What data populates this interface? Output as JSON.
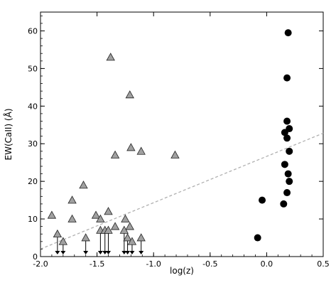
{
  "chart_data": {
    "type": "scatter",
    "title": "",
    "xlabel": "log(z)",
    "ylabel": "EW(CaII) (Å)",
    "xlim": [
      -2.0,
      0.5
    ],
    "ylim": [
      0,
      65
    ],
    "x_ticks": [
      -2.0,
      -1.5,
      -1.0,
      -0.5,
      0.0,
      0.5
    ],
    "x_tick_labels": [
      "-2.0",
      "-1.5",
      "-1.0",
      "-0.5",
      "0.0",
      "0.5"
    ],
    "y_ticks": [
      0,
      10,
      20,
      30,
      40,
      50,
      60
    ],
    "y_tick_labels": [
      "0",
      "10",
      "20",
      "30",
      "40",
      "50",
      "60"
    ],
    "grid": false,
    "colors": {
      "triangle_fill": "#a0a0a0",
      "triangle_stroke": "#222222",
      "circle_fill": "#000000",
      "fit_line": "#b0b0b0",
      "axis": "#000000"
    },
    "series": [
      {
        "marker": "triangle",
        "points": [
          {
            "x": -1.38,
            "y": 53
          },
          {
            "x": -1.21,
            "y": 43
          },
          {
            "x": -1.2,
            "y": 29
          },
          {
            "x": -1.11,
            "y": 28
          },
          {
            "x": -1.34,
            "y": 27
          },
          {
            "x": -0.81,
            "y": 27
          },
          {
            "x": -1.62,
            "y": 19
          },
          {
            "x": -1.72,
            "y": 15
          },
          {
            "x": -1.4,
            "y": 12
          },
          {
            "x": -1.9,
            "y": 11
          },
          {
            "x": -1.51,
            "y": 11
          },
          {
            "x": -1.72,
            "y": 10
          },
          {
            "x": -1.47,
            "y": 10
          },
          {
            "x": -1.25,
            "y": 10
          },
          {
            "x": -1.34,
            "y": 8
          },
          {
            "x": -1.21,
            "y": 8
          }
        ]
      },
      {
        "marker": "triangle",
        "upper_limit": true,
        "points": [
          {
            "x": -1.85,
            "y": 6
          },
          {
            "x": -1.8,
            "y": 4
          },
          {
            "x": -1.6,
            "y": 5
          },
          {
            "x": -1.47,
            "y": 7
          },
          {
            "x": -1.43,
            "y": 7
          },
          {
            "x": -1.4,
            "y": 7
          },
          {
            "x": -1.26,
            "y": 7
          },
          {
            "x": -1.23,
            "y": 5
          },
          {
            "x": -1.19,
            "y": 4
          },
          {
            "x": -1.11,
            "y": 5
          }
        ]
      },
      {
        "marker": "circle",
        "points": [
          {
            "x": 0.19,
            "y": 59.5
          },
          {
            "x": 0.18,
            "y": 47.5
          },
          {
            "x": 0.18,
            "y": 36
          },
          {
            "x": 0.2,
            "y": 34
          },
          {
            "x": 0.16,
            "y": 33
          },
          {
            "x": 0.18,
            "y": 31.5
          },
          {
            "x": 0.2,
            "y": 28
          },
          {
            "x": 0.16,
            "y": 24.5
          },
          {
            "x": 0.19,
            "y": 22
          },
          {
            "x": 0.2,
            "y": 20
          },
          {
            "x": 0.18,
            "y": 17
          },
          {
            "x": -0.04,
            "y": 15
          },
          {
            "x": 0.15,
            "y": 14
          },
          {
            "x": -0.08,
            "y": 5
          }
        ]
      }
    ],
    "fit_line": {
      "style": "dashed",
      "x": [
        -2.0,
        0.5
      ],
      "y": [
        2.0,
        32.8
      ]
    }
  }
}
